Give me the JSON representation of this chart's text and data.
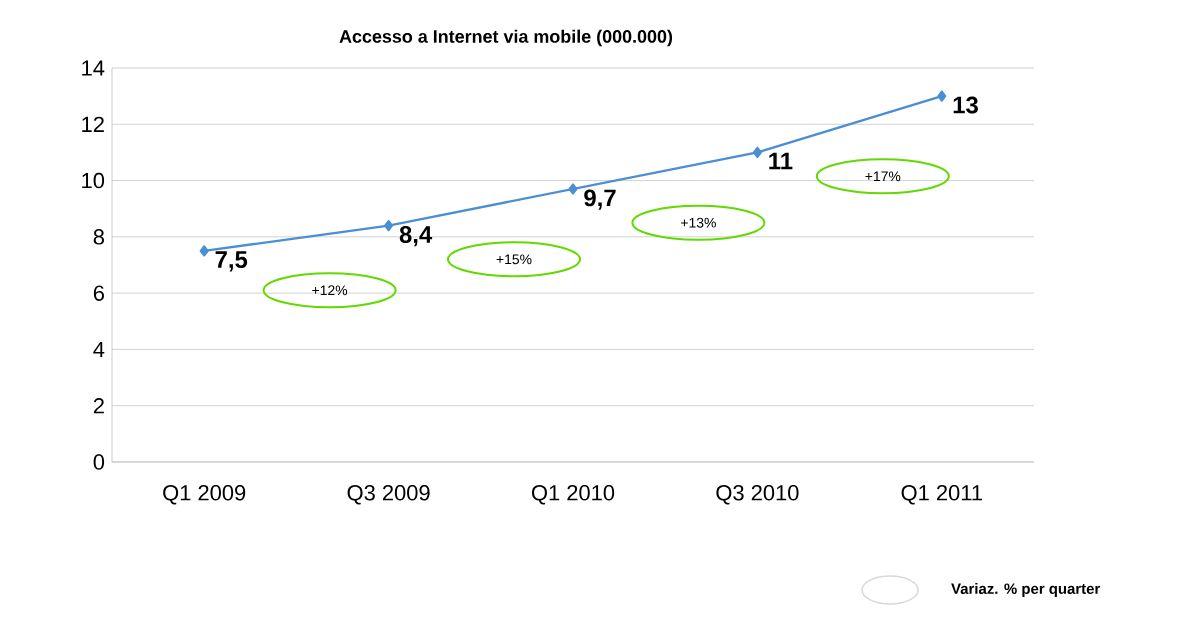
{
  "chart_data": {
    "type": "line",
    "title": "Accesso a Internet via mobile (000.000)",
    "categories": [
      "Q1 2009",
      "Q3 2009",
      "Q1 2010",
      "Q3 2010",
      "Q1 2011"
    ],
    "series": [
      {
        "color": "#4a8fd4",
        "values": [
          7.5,
          8.4,
          9.7,
          11,
          13
        ],
        "value_labels": [
          "7,5",
          "8,4",
          "9,7",
          "11",
          "13"
        ]
      }
    ],
    "ylim": [
      0,
      14
    ],
    "yticks": [
      0,
      2,
      4,
      6,
      8,
      10,
      12,
      14
    ],
    "grid": "y",
    "marker": "diamond",
    "line_style": "solid",
    "annotations": [
      "+12%",
      "+15%",
      "+13%",
      "+17%",
      "Variaz. % per quarter"
    ]
  }
}
